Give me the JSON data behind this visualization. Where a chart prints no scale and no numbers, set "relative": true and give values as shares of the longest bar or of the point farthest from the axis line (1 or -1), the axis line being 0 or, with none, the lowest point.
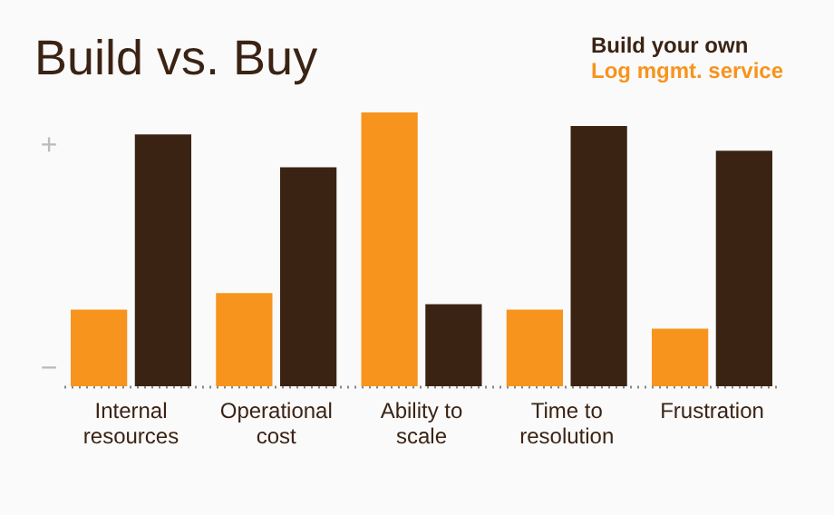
{
  "chart_data": {
    "type": "bar",
    "title": "Build vs. Buy",
    "relative": true,
    "legend": "top right",
    "grid": false,
    "categories": [
      "Internal resources",
      "Operational cost",
      "Ability to scale",
      "Time to resolution",
      "Frustration"
    ],
    "series": [
      {
        "name": "Log mgmt. service",
        "color": "#f7941d",
        "values": [
          0.28,
          0.34,
          1.0,
          0.28,
          0.21
        ]
      },
      {
        "name": "Build your own",
        "color": "#3b2314",
        "values": [
          0.92,
          0.8,
          0.3,
          0.95,
          0.86
        ]
      }
    ],
    "annotations": [
      "+",
      "−"
    ]
  }
}
